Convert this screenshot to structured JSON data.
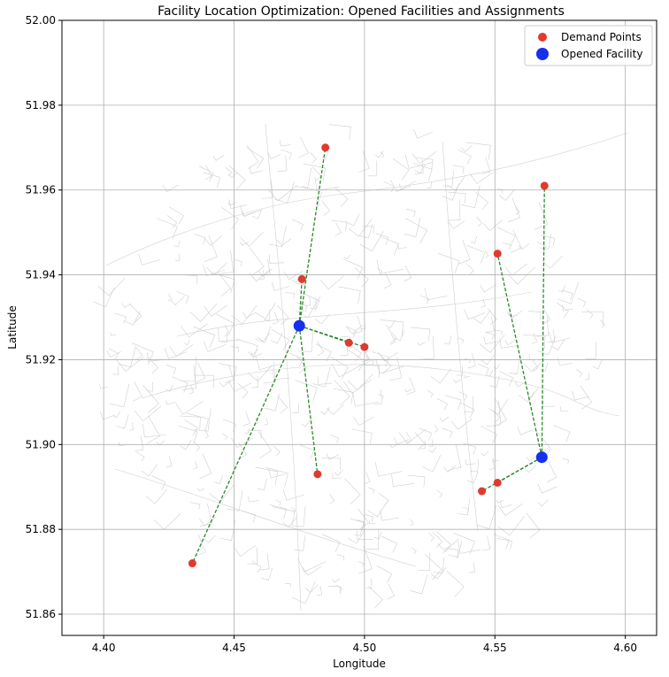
{
  "chart_data": {
    "type": "scatter",
    "title": "Facility Location Optimization: Opened Facilities and Assignments",
    "xlabel": "Longitude",
    "ylabel": "Latitude",
    "xlim": [
      4.384,
      4.612
    ],
    "ylim": [
      51.855,
      52.0
    ],
    "xticks": [
      "4.40",
      "4.45",
      "4.50",
      "4.55",
      "4.60"
    ],
    "yticks": [
      "51.86",
      "51.88",
      "51.90",
      "51.92",
      "51.94",
      "51.96",
      "51.98",
      "52.00"
    ],
    "grid": true,
    "legend_position": "top-right",
    "series": [
      {
        "name": "Demand Points",
        "color": "#e03a2e",
        "points": [
          {
            "x": 4.485,
            "y": 51.97
          },
          {
            "x": 4.569,
            "y": 51.961
          },
          {
            "x": 4.551,
            "y": 51.945
          },
          {
            "x": 4.476,
            "y": 51.939
          },
          {
            "x": 4.494,
            "y": 51.924
          },
          {
            "x": 4.5,
            "y": 51.923
          },
          {
            "x": 4.482,
            "y": 51.893
          },
          {
            "x": 4.551,
            "y": 51.891
          },
          {
            "x": 4.545,
            "y": 51.889
          },
          {
            "x": 4.434,
            "y": 51.872
          }
        ]
      },
      {
        "name": "Opened Facility",
        "color": "#1530ee",
        "points": [
          {
            "x": 4.475,
            "y": 51.928
          },
          {
            "x": 4.568,
            "y": 51.897
          }
        ]
      }
    ],
    "assignments": {
      "color": "#2a8a2a",
      "links": [
        {
          "facility": 0,
          "demand": 0
        },
        {
          "facility": 0,
          "demand": 3
        },
        {
          "facility": 0,
          "demand": 4
        },
        {
          "facility": 0,
          "demand": 5
        },
        {
          "facility": 0,
          "demand": 6
        },
        {
          "facility": 0,
          "demand": 9
        },
        {
          "facility": 1,
          "demand": 1
        },
        {
          "facility": 1,
          "demand": 2
        },
        {
          "facility": 1,
          "demand": 7
        },
        {
          "facility": 1,
          "demand": 8
        }
      ]
    }
  }
}
